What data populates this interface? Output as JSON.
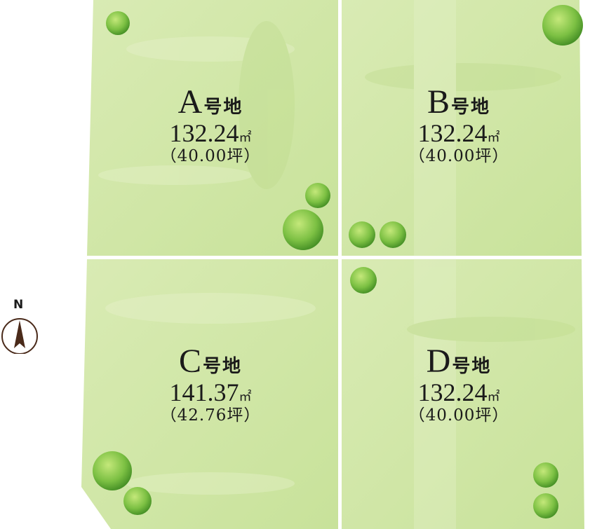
{
  "map": {
    "lots": [
      {
        "id": "A",
        "letter": "A",
        "suffix": "号地",
        "area": "132.24",
        "unit": "㎡",
        "tsubo": "（40.00坪）"
      },
      {
        "id": "B",
        "letter": "B",
        "suffix": "号地",
        "area": "132.24",
        "unit": "㎡",
        "tsubo": "（40.00坪）"
      },
      {
        "id": "C",
        "letter": "C",
        "suffix": "号地",
        "area": "141.37",
        "unit": "㎡",
        "tsubo": "（42.76坪）"
      },
      {
        "id": "D",
        "letter": "D",
        "suffix": "号地",
        "area": "132.24",
        "unit": "㎡",
        "tsubo": "（40.00坪）"
      }
    ],
    "compass": {
      "label": "N",
      "icon": "north-arrow-icon"
    },
    "colors": {
      "lot_fill": "#cfe6a4",
      "lot_fill_light": "#dcecb8",
      "boundary": "#ffffff",
      "tree": "#6fb83a",
      "compass_arrow": "#4a2a1a"
    }
  }
}
